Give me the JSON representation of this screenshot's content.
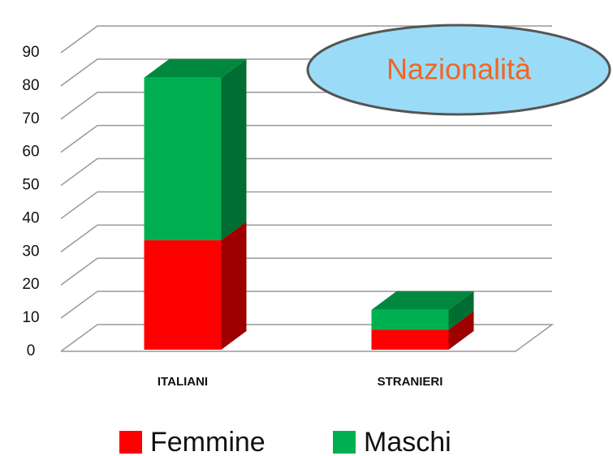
{
  "chart_data": {
    "type": "bar3d_stacked",
    "title": "Nazionalità",
    "categories": [
      "ITALIANI",
      "STRANIERI"
    ],
    "series": [
      {
        "name": "Femmine",
        "color": "#ff0000",
        "values": [
          33,
          6
        ]
      },
      {
        "name": "Maschi",
        "color": "#00b050",
        "values": [
          49,
          6
        ]
      }
    ],
    "ylim": [
      0,
      90
    ],
    "yticks": [
      0,
      10,
      20,
      30,
      40,
      50,
      60,
      70,
      80,
      90
    ],
    "grid": true,
    "legend": "bottom"
  }
}
